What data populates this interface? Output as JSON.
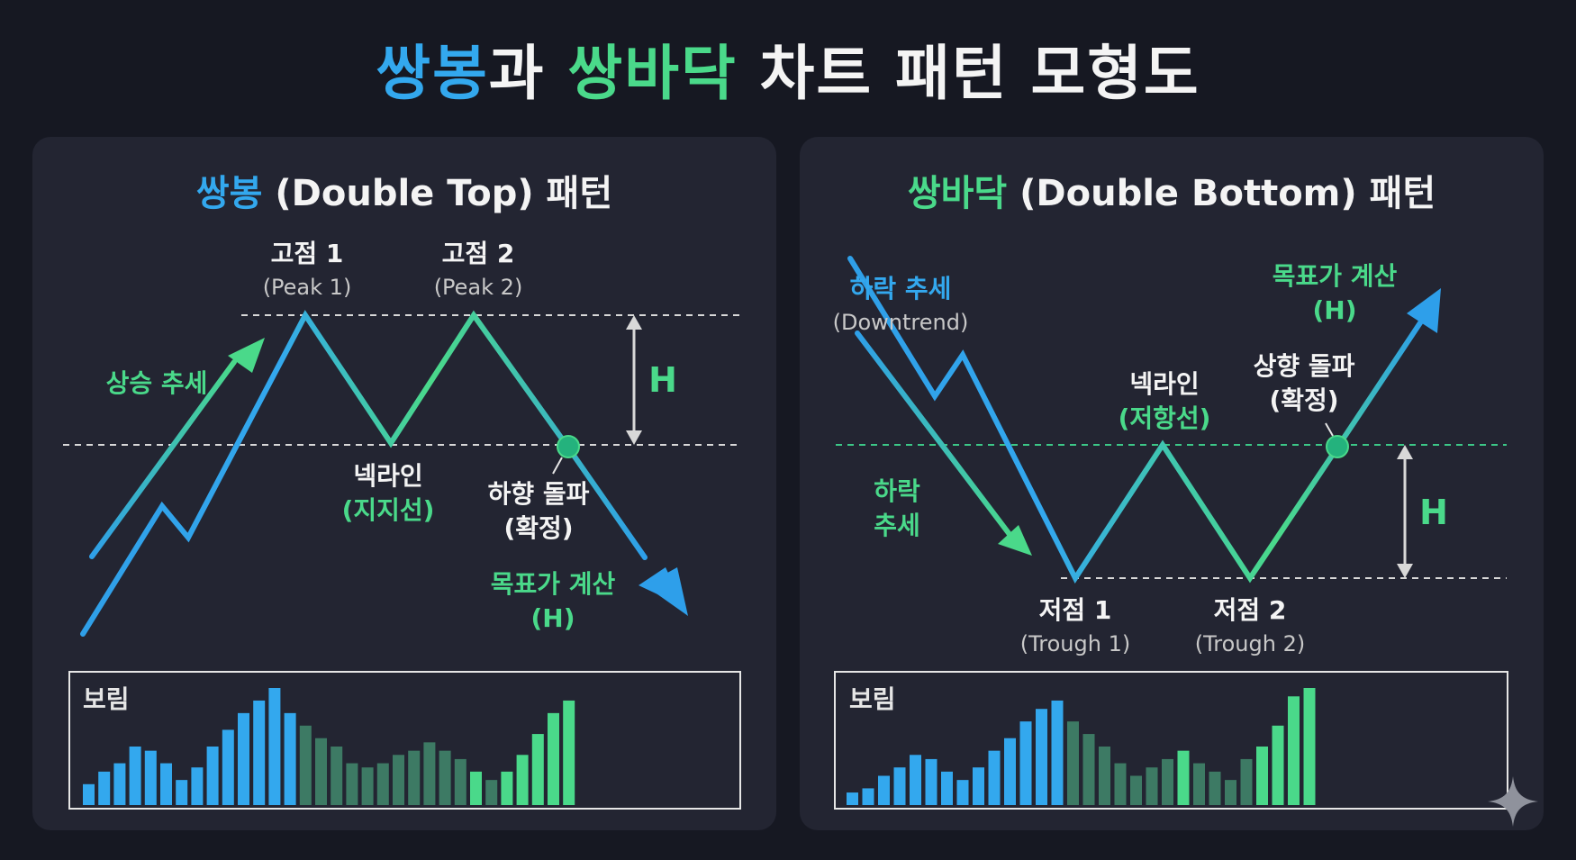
{
  "title": {
    "part1": "쌍봉",
    "part2": "과 ",
    "part3": "쌍바닥",
    "part4": " 차트 패턴 모형도"
  },
  "colors": {
    "background": "#161822",
    "panel": "#232532",
    "blue": "#33a8ee",
    "green": "#4ad98a",
    "white": "#f4f4f4",
    "gray": "#c8c8c8"
  },
  "double_top": {
    "title_ko": "쌍봉",
    "title_rest": " (Double Top) 패턴",
    "peak1_ko": "고점 1",
    "peak1_en": "(Peak 1)",
    "peak2_ko": "고점 2",
    "peak2_en": "(Peak 2)",
    "uptrend": "상승 추세",
    "neckline": "넥라인",
    "neckline_sub": "(지지선)",
    "breakdown": "하향 돌파",
    "breakdown_sub": "(확정)",
    "target": "목표가 계산",
    "target_sub": "(H)",
    "height": "H",
    "volume_label": "보림",
    "volume": [
      5,
      8,
      10,
      14,
      13,
      10,
      6,
      9,
      14,
      18,
      22,
      25,
      28,
      22,
      19,
      16,
      14,
      10,
      9,
      10,
      12,
      13,
      15,
      13,
      11,
      8,
      6,
      8,
      12,
      17,
      22,
      25
    ]
  },
  "double_bottom": {
    "title_ko": "쌍바닥",
    "title_rest": " (Double Bottom) 패턴",
    "downtrend_ko": "하락 추세",
    "downtrend_en": "(Downtrend)",
    "downtrend_side_1": "하락",
    "downtrend_side_2": "추세",
    "neckline": "넥라인",
    "neckline_sub": "(저항선)",
    "breakout": "상향 돌파",
    "breakout_sub": "(확정)",
    "target": "목표가 계산",
    "target_sub": "(H)",
    "trough1_ko": "저점 1",
    "trough1_en": "(Trough 1)",
    "trough2_ko": "저점 2",
    "trough2_en": "(Trough 2)",
    "height": "H",
    "volume_label": "보림",
    "volume": [
      3,
      4,
      7,
      9,
      12,
      11,
      8,
      6,
      9,
      13,
      16,
      20,
      23,
      25,
      20,
      17,
      14,
      10,
      7,
      9,
      11,
      13,
      10,
      8,
      6,
      11,
      14,
      19,
      26,
      28
    ]
  }
}
